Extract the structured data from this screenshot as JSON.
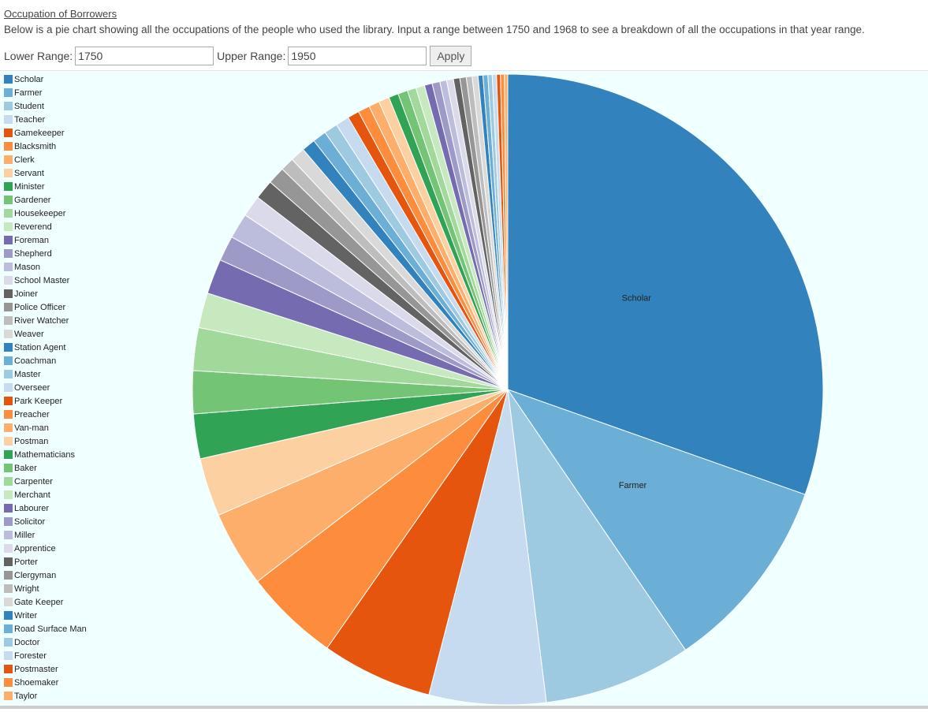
{
  "header": {
    "title": "Occupation of Borrowers",
    "description": "Below is a pie chart showing all the occupations of the people who used the library. Input a range between 1750 and 1968 to see a breakdown of all the occupations in that year range."
  },
  "form": {
    "lower_label": "Lower Range:",
    "lower_value": "1750",
    "upper_label": "Upper Range:",
    "upper_value": "1950",
    "button": "Apply"
  },
  "chart_data": {
    "type": "pie",
    "categories": [
      "Scholar",
      "Farmer",
      "Student",
      "Teacher",
      "Gamekeeper",
      "Blacksmith",
      "Clerk",
      "Servant",
      "Minister",
      "Gardener",
      "Housekeeper",
      "Reverend",
      "Foreman",
      "Shepherd",
      "Mason",
      "School Master",
      "Joiner",
      "Police Officer",
      "River Watcher",
      "Weaver",
      "Station Agent",
      "Coachman",
      "Master",
      "Overseer",
      "Park Keeper",
      "Preacher",
      "Van-man",
      "Postman",
      "Mathematicians",
      "Baker",
      "Carpenter",
      "Merchant",
      "Labourer",
      "Solicitor",
      "Miller",
      "Apprentice",
      "Porter",
      "Clergyman",
      "Wright",
      "Gate Keeper",
      "Writer",
      "Road Surface Man",
      "Doctor",
      "Forester",
      "Postmaster",
      "Shoemaker",
      "Taylor"
    ],
    "values": [
      30.5,
      10.1,
      7.6,
      6.0,
      5.7,
      4.9,
      3.9,
      3.0,
      2.3,
      2.2,
      2.2,
      1.8,
      1.8,
      1.3,
      1.3,
      1.1,
      1.0,
      0.9,
      0.7,
      0.75,
      0.7,
      0.7,
      0.7,
      0.7,
      0.6,
      0.6,
      0.55,
      0.55,
      0.5,
      0.5,
      0.45,
      0.45,
      0.4,
      0.4,
      0.35,
      0.35,
      0.33,
      0.33,
      0.3,
      0.3,
      0.25,
      0.25,
      0.22,
      0.22,
      0.2,
      0.2,
      0.17
    ],
    "colors": [
      "#3182bd",
      "#6baed6",
      "#9ecae1",
      "#c6dbef",
      "#e6550d",
      "#fd8d3c",
      "#fdae6b",
      "#fdd0a2",
      "#31a354",
      "#74c476",
      "#a1d99b",
      "#c7e9c0",
      "#756bb1",
      "#9e9ac8",
      "#bcbddc",
      "#dadaeb",
      "#636363",
      "#969696",
      "#bdbdbd",
      "#d9d9d9"
    ]
  }
}
